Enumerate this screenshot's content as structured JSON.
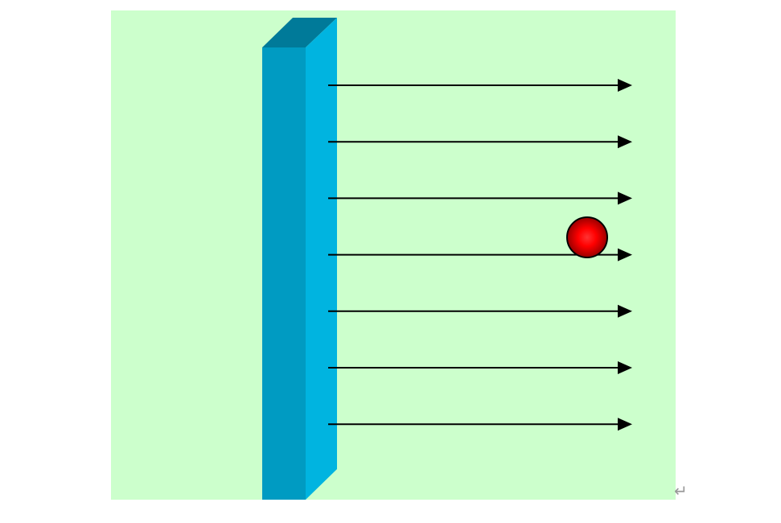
{
  "diagram": {
    "background_color": "#ccffcc",
    "plate": {
      "front_color": "#009bc2",
      "side_color": "#00b4e0",
      "top_color": "#007a99"
    },
    "field_lines": {
      "count": 7,
      "color": "#000000",
      "direction": "right"
    },
    "charge": {
      "fill_color": "#ff0000",
      "dark_color": "#990000",
      "outline_color": "#000000"
    },
    "return_mark": {
      "text": "↵",
      "color": "#999999"
    }
  }
}
